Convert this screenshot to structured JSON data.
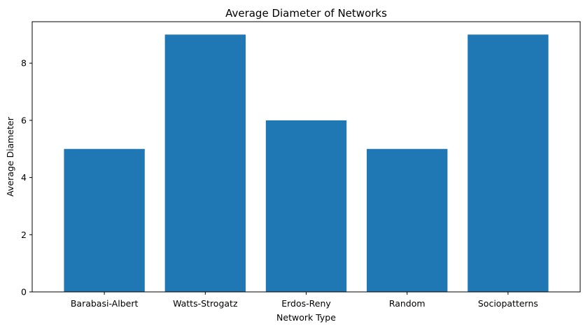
{
  "chart_data": {
    "type": "bar",
    "title": "Average Diameter of Networks",
    "xlabel": "Network Type",
    "ylabel": "Average Diameter",
    "categories": [
      "Barabasi-Albert",
      "Watts-Strogatz",
      "Erdos-Reny",
      "Random",
      "Sociopatterns"
    ],
    "values": [
      5,
      9,
      6,
      5,
      9
    ],
    "ylim": [
      0,
      9.45
    ],
    "yticks": [
      0,
      2,
      4,
      6,
      8
    ],
    "grid": false,
    "bar_color": "#1f77b4"
  }
}
